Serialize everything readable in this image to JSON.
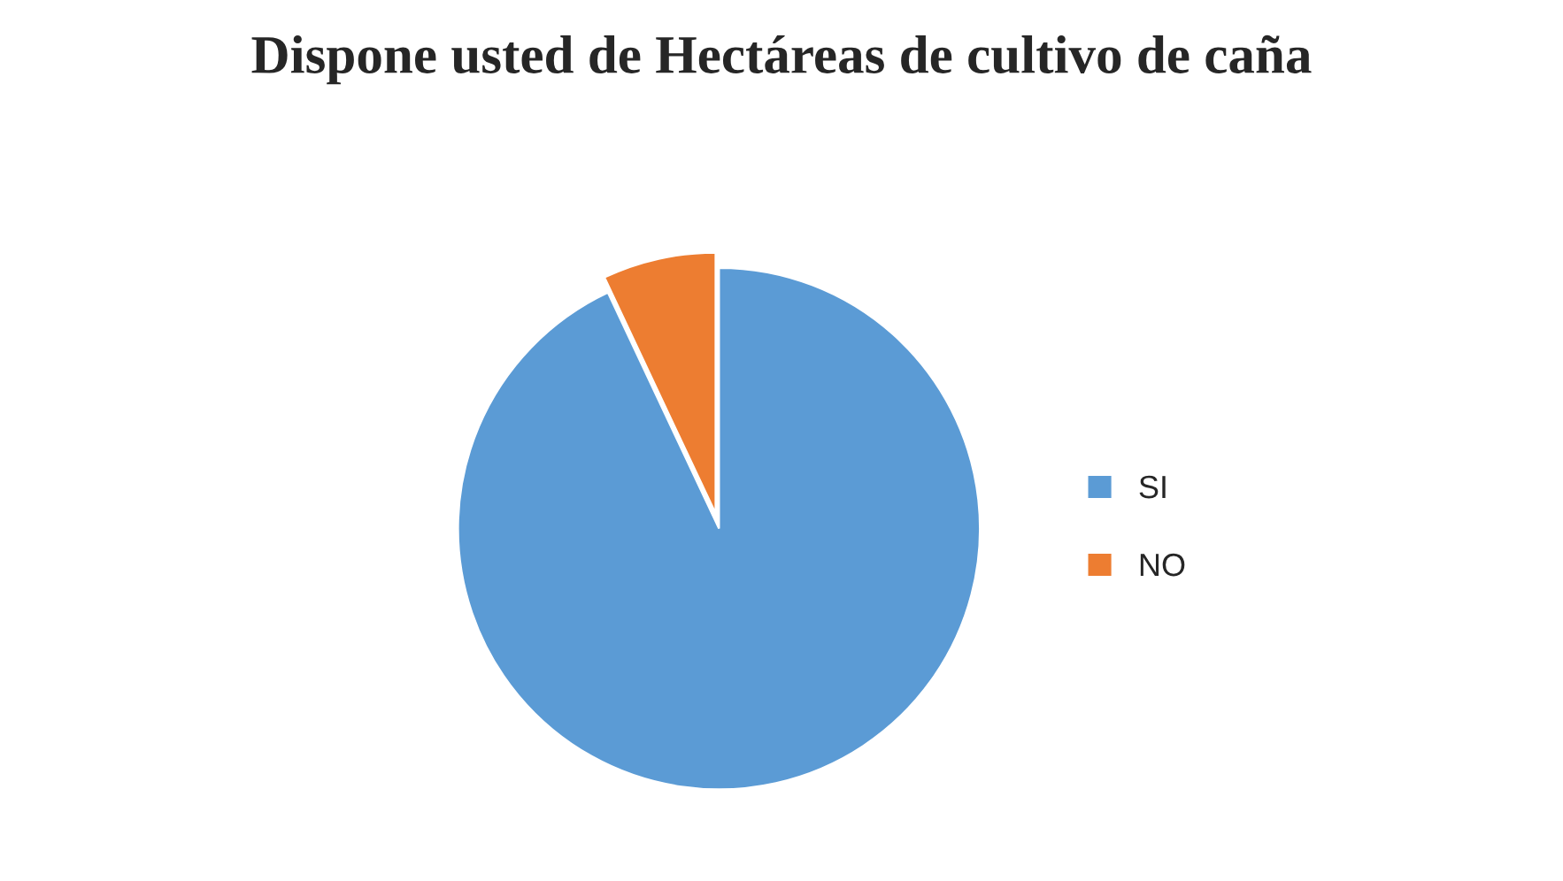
{
  "chart_data": {
    "type": "pie",
    "title": "Dispone usted de Hectáreas de cultivo de caña",
    "categories": [
      "SI",
      "NO"
    ],
    "values": [
      93,
      7
    ],
    "colors": [
      "#5b9bd5",
      "#ed7d31"
    ],
    "legend": "right"
  }
}
